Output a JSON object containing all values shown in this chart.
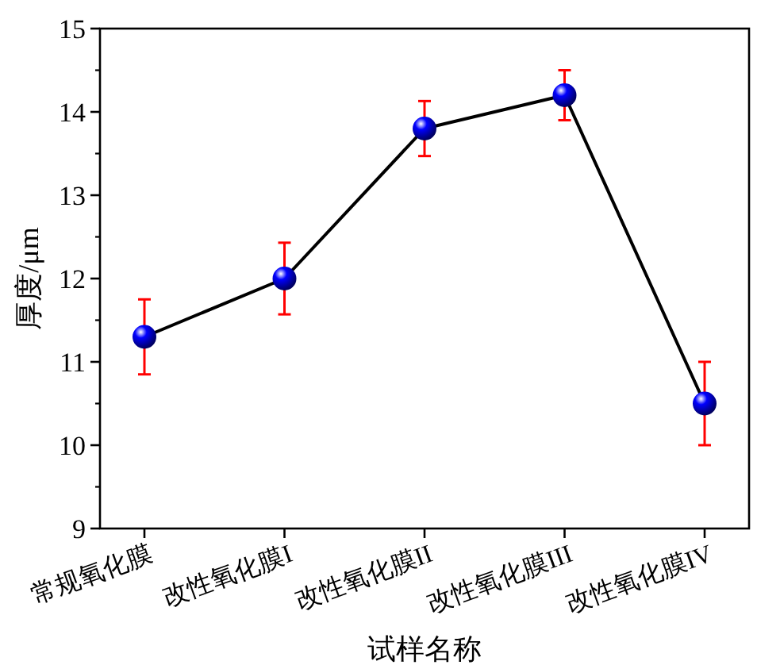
{
  "chart_data": {
    "type": "line",
    "xlabel": "试样名称",
    "ylabel": "厚度/μm",
    "categories": [
      "常规氧化膜",
      "改性氧化膜I",
      "改性氧化膜II",
      "改性氧化膜III",
      "改性氧化膜IV"
    ],
    "series": [
      {
        "color": "#0000ff",
        "values": [
          11.3,
          12.0,
          13.8,
          14.2,
          10.5
        ],
        "errors": [
          0.45,
          0.43,
          0.33,
          0.3,
          0.5
        ]
      }
    ],
    "ylim": [
      9,
      15
    ],
    "yticks": [
      9,
      10,
      11,
      12,
      13,
      14,
      15
    ],
    "marker": "circle",
    "line_style": "solid"
  }
}
